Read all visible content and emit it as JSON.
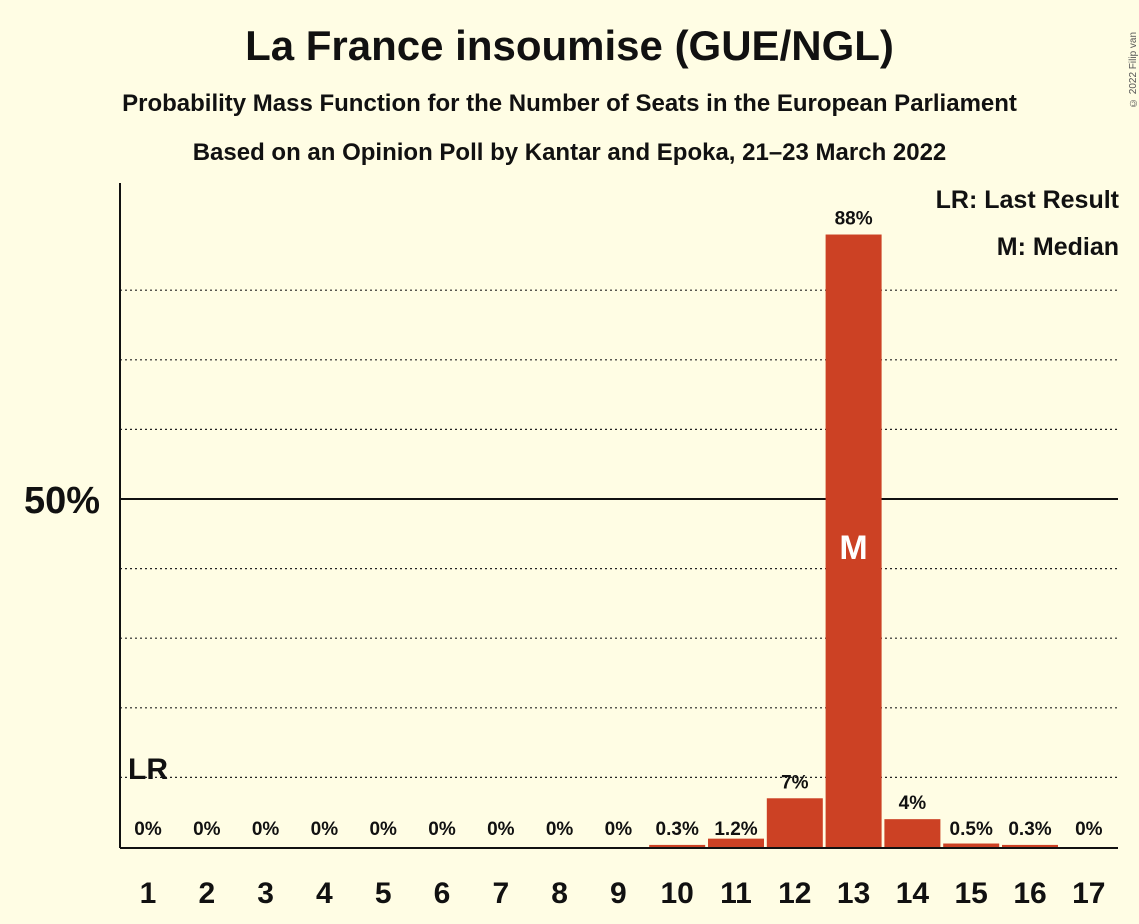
{
  "header": {
    "title": "La France insoumise (GUE/NGL)",
    "subtitle1": "Probability Mass Function for the Number of Seats in the European Parliament",
    "subtitle2": "Based on an Opinion Poll by Kantar and Epoka, 21–23 March 2022",
    "copyright": "© 2022 Filip van Laenen"
  },
  "legend": {
    "last_result": "LR: Last Result",
    "median": "M: Median"
  },
  "colors": {
    "background": "#FFFDE4",
    "bar": "#CC4124",
    "axis": "#111111"
  },
  "chart_data": {
    "type": "bar",
    "categories": [
      "1",
      "2",
      "3",
      "4",
      "5",
      "6",
      "7",
      "8",
      "9",
      "10",
      "11",
      "12",
      "13",
      "14",
      "15",
      "16",
      "17"
    ],
    "values": [
      0,
      0,
      0,
      0,
      0,
      0,
      0,
      0,
      0,
      0.3,
      1.2,
      7,
      88,
      4,
      0.5,
      0.3,
      0
    ],
    "labels": [
      "0%",
      "0%",
      "0%",
      "0%",
      "0%",
      "0%",
      "0%",
      "0%",
      "0%",
      "0.3%",
      "1.2%",
      "7%",
      "88%",
      "4%",
      "0.5%",
      "0.3%",
      "0%"
    ],
    "ytick_label": "50%",
    "ytick_value": 50,
    "ylim": [
      0,
      96
    ],
    "gridlines": [
      10,
      20,
      30,
      40,
      60,
      70,
      80
    ],
    "last_result_seat": "1",
    "last_result_marker": "LR",
    "median_seat": "13",
    "median_marker": "M"
  }
}
